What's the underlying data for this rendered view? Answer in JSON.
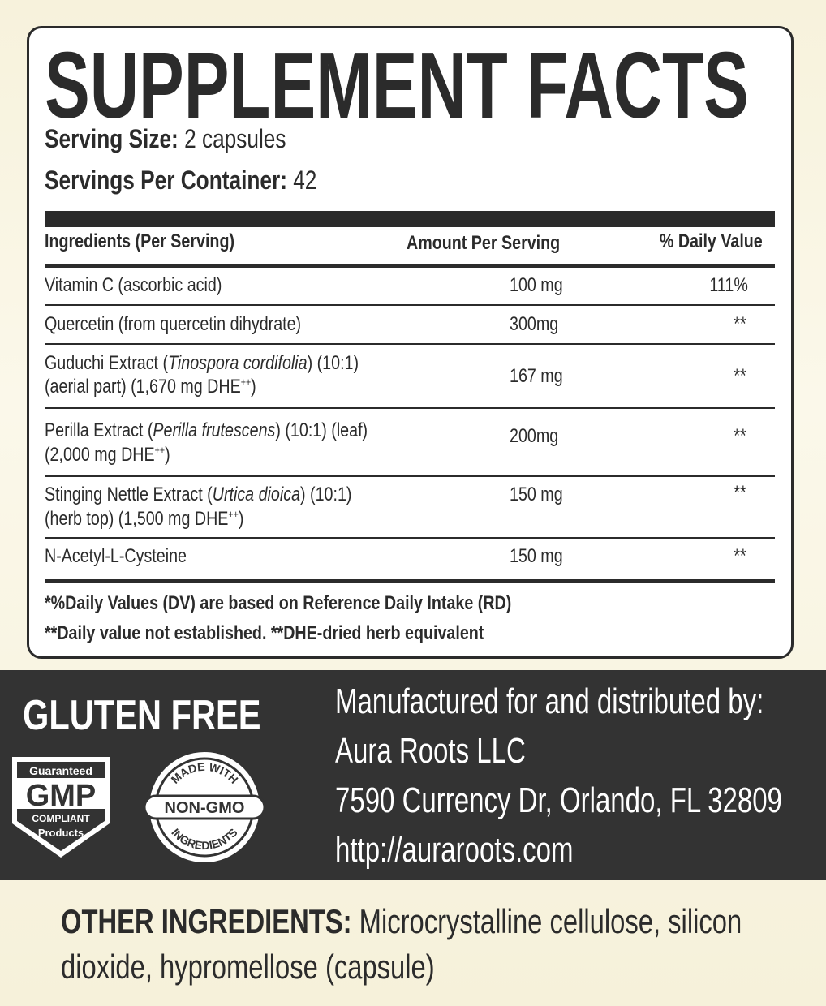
{
  "header": {
    "title": "SUPPLEMENT FACTS",
    "serving_size_label": "Serving Size:",
    "serving_size": "2 capsules",
    "servings_label": "Servings Per Container:",
    "servings": "42"
  },
  "table": {
    "columns": [
      "Ingredients (Per Serving)",
      "Amount Per Serving",
      "% Daily Value"
    ],
    "rows": [
      {
        "name": [
          "Vitamin C (ascorbic acid)"
        ],
        "amount": "100 mg",
        "dv": "111%"
      },
      {
        "name": [
          "Quercetin (from quercetin dihydrate)"
        ],
        "amount": "300mg",
        "dv": "**"
      },
      {
        "name": [
          "Guduchi Extract (",
          "Tinospora cordifolia",
          ") (10:1)"
        ],
        "detail": [
          "(aerial part) (1,670 mg DHE",
          "++",
          ")"
        ],
        "amount": "167 mg",
        "dv": "**"
      },
      {
        "name": [
          "Perilla Extract (",
          "Perilla frutescens",
          ") (10:1) (leaf)"
        ],
        "detail": [
          "(2,000 mg DHE",
          "++",
          ")"
        ],
        "amount": "200mg",
        "dv": "**"
      },
      {
        "name": [
          "Stinging Nettle Extract (",
          "Urtica dioica",
          ") (10:1)"
        ],
        "detail": [
          "(herb top) (1,500 mg DHE",
          "++",
          ")"
        ],
        "amount": "150 mg",
        "dv": "**"
      },
      {
        "name": [
          "N-Acetyl-L-Cysteine"
        ],
        "amount": "150 mg",
        "dv": "**"
      }
    ]
  },
  "footnotes": [
    "*%Daily Values (DV) are based on Reference Daily Intake (RD)",
    "**Daily value not established. **DHE-dried herb equivalent"
  ],
  "band": {
    "gluten": "GLUTEN FREE",
    "gmp": [
      "Guaranteed",
      "GMP",
      "COMPLIANT",
      "Products"
    ],
    "nongmo": [
      "MADE WITH",
      "NON-GMO",
      "INGREDIENTS"
    ],
    "manufacturer": [
      "Manufactured for and distributed by:",
      "Aura Roots LLC",
      "7590 Currency Dr, Orlando, FL 32809",
      "http://auraroots.com"
    ]
  },
  "other": {
    "label": "OTHER INGREDIENTS:",
    "text": [
      "Microcrystalline cellulose, silicon",
      "dioxide, hypromellose (capsule)"
    ]
  }
}
